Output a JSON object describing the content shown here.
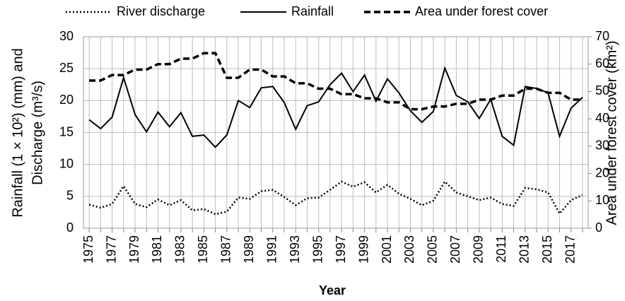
{
  "chart_data": {
    "type": "line",
    "legend": "top",
    "grid": true,
    "categories": [
      "1975",
      null,
      "1977",
      null,
      "1979",
      null,
      "1981",
      null,
      "1983",
      null,
      "1985",
      null,
      "1987",
      null,
      "1989",
      null,
      "1991",
      null,
      "1993",
      null,
      "1995",
      null,
      "1997",
      null,
      "1999",
      null,
      "2001",
      null,
      "2003",
      null,
      "2005",
      null,
      "2007",
      null,
      "2009",
      null,
      "2011",
      null,
      "2013",
      null,
      "2015",
      null,
      "2017",
      null
    ],
    "xlabel": "Year",
    "ylabel": [
      "Rainfall (1 × 10²) (mm) and",
      "Discharge (m³/s)"
    ],
    "y2label": "Area under forest cover (km²)",
    "ylim": [
      0,
      30
    ],
    "yticks": [
      0,
      5,
      10,
      15,
      20,
      25,
      30
    ],
    "y2lim": [
      0,
      70
    ],
    "y2ticks": [
      0,
      10,
      20,
      30,
      40,
      50,
      60,
      70
    ],
    "series": [
      {
        "name": "River discharge",
        "color": "#000000",
        "dash": "dotted",
        "values": [
          3.7,
          3.2,
          3.8,
          6.6,
          3.8,
          3.3,
          4.5,
          3.6,
          4.4,
          2.8,
          3.0,
          2.2,
          2.6,
          4.8,
          4.6,
          5.8,
          6.0,
          4.9,
          3.6,
          4.7,
          4.8,
          6.0,
          7.3,
          6.5,
          7.2,
          5.6,
          6.8,
          5.4,
          4.6,
          3.6,
          4.3,
          7.3,
          5.6,
          5.0,
          4.4,
          4.8,
          3.8,
          3.5,
          6.3,
          6.1,
          5.6,
          2.3,
          4.4,
          5.2
        ]
      },
      {
        "name": "Rainfall",
        "color": "#000000",
        "dash": "solid",
        "values": [
          17.0,
          15.6,
          17.4,
          23.6,
          17.8,
          15.1,
          18.2,
          15.9,
          18.1,
          14.4,
          14.6,
          12.7,
          14.6,
          20.0,
          18.9,
          22.0,
          22.2,
          19.7,
          15.5,
          19.2,
          19.8,
          22.5,
          24.3,
          21.4,
          24.0,
          19.9,
          23.4,
          21.2,
          18.4,
          16.6,
          18.3,
          25.1,
          20.8,
          19.8,
          17.2,
          20.2,
          14.4,
          13.0,
          22.2,
          21.9,
          21.2,
          14.4,
          18.8,
          20.5
        ]
      },
      {
        "name": "Area under forest cover",
        "color": "#000000",
        "dash": "dashed",
        "axis": "y2",
        "values": [
          54,
          54,
          56,
          56,
          58,
          58,
          60,
          60,
          62,
          62,
          64,
          64,
          55,
          55,
          58,
          58,
          55.5,
          55.5,
          53,
          53,
          51,
          51,
          49,
          49,
          47.5,
          47.5,
          46,
          46,
          43.5,
          43.5,
          44.5,
          44.5,
          45.5,
          45.5,
          47,
          47,
          48.5,
          48.5,
          51,
          51,
          49.5,
          49.5,
          47,
          47
        ]
      }
    ]
  }
}
